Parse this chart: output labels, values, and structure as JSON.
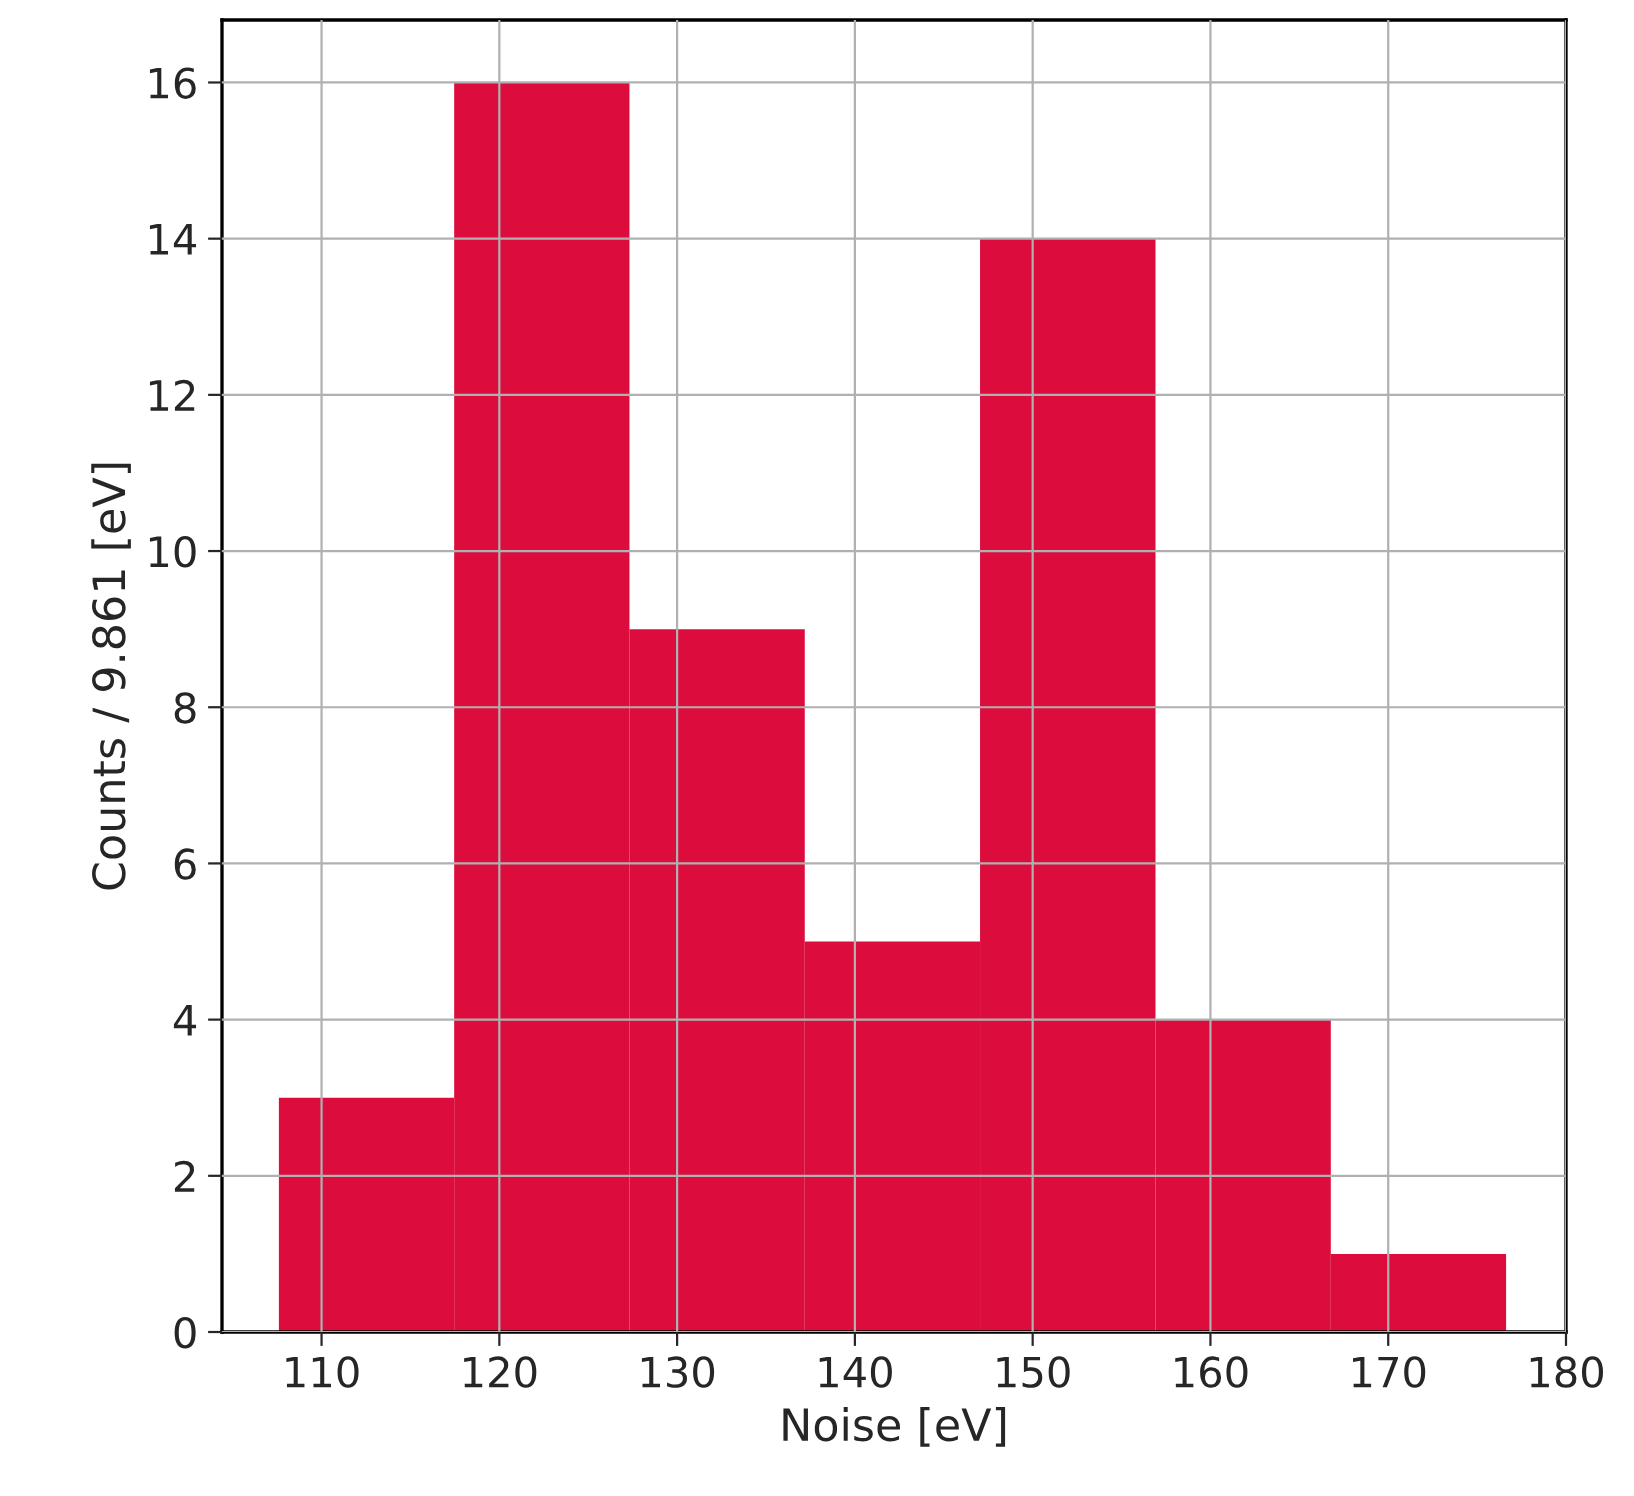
{
  "chart_data": {
    "type": "histogram",
    "xlabel": "Noise [eV]",
    "ylabel": "Counts / 9.861 [eV]",
    "bins": [
      107.6,
      117.46,
      127.32,
      137.18,
      147.04,
      156.91,
      166.77,
      176.63
    ],
    "values": [
      3,
      16,
      9,
      5,
      14,
      4,
      1
    ],
    "color": "#dc0c3c",
    "xlim": [
      104.4,
      180
    ],
    "xticks": [
      110,
      120,
      130,
      140,
      150,
      160,
      170,
      180
    ],
    "ylim": [
      0,
      16.8
    ],
    "yticks": [
      0,
      2,
      4,
      6,
      8,
      10,
      12,
      14,
      16
    ],
    "grid": true
  }
}
